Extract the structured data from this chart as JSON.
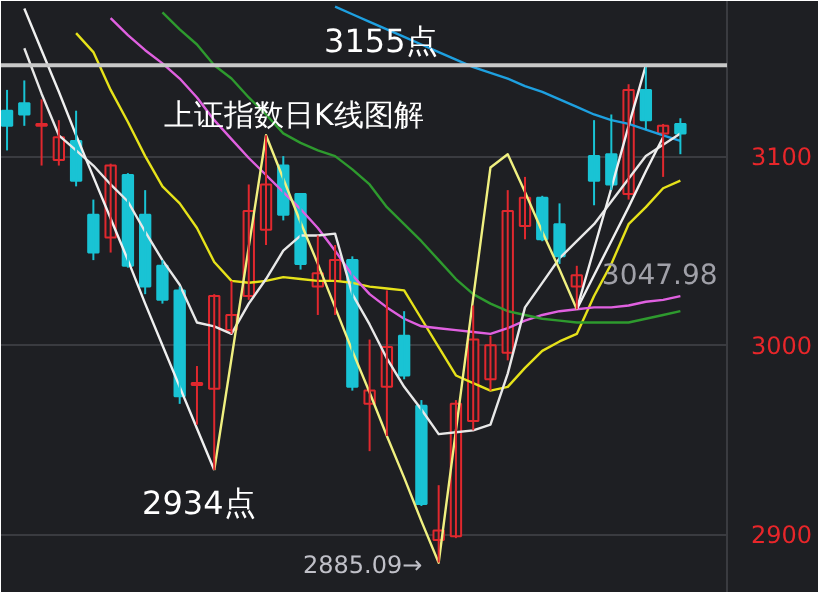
{
  "chart_data": {
    "type": "candlestick",
    "title": "上证指数日K线图解",
    "categories": [
      null,
      null,
      null,
      null,
      null,
      null,
      null,
      null,
      null,
      null,
      null,
      null,
      null,
      null,
      null,
      null,
      null,
      null,
      null,
      null,
      null,
      null,
      null,
      null,
      null,
      null,
      null,
      null,
      null,
      null,
      null,
      null,
      null,
      null,
      null,
      null,
      null,
      null,
      null,
      null
    ],
    "ohlc": [
      [
        3124,
        3135,
        3103,
        3116
      ],
      [
        3128,
        3140,
        3116,
        3122
      ],
      [
        3116,
        3130,
        3095,
        3117
      ],
      [
        3098,
        3119,
        3095,
        3110
      ],
      [
        3108,
        3124,
        3084,
        3087
      ],
      [
        3069,
        3077,
        3045,
        3049
      ],
      [
        3057,
        3096,
        3049,
        3095
      ],
      [
        3090,
        3091,
        3041,
        3042
      ],
      [
        3069,
        3082,
        3027,
        3031
      ],
      [
        3042,
        3045,
        3022,
        3024
      ],
      [
        3029,
        3031,
        2969,
        2973
      ],
      [
        2979,
        2989,
        2958,
        2980
      ],
      [
        2977,
        3027,
        2934,
        3026
      ],
      [
        3008,
        3034,
        3006,
        3016
      ],
      [
        3026,
        3085,
        3024,
        3071
      ],
      [
        3061,
        3111,
        3053,
        3085
      ],
      [
        3095,
        3100,
        3066,
        3069
      ],
      [
        3080,
        3080,
        3040,
        3043
      ],
      [
        3031,
        3058,
        3016,
        3038
      ],
      [
        3034,
        3053,
        3016,
        3045
      ],
      [
        3045,
        3047,
        2976,
        2978
      ],
      [
        2969,
        3003,
        2944,
        2976
      ],
      [
        2978,
        3029,
        2952,
        2999
      ],
      [
        3005,
        3018,
        2982,
        2984
      ],
      [
        2968,
        2971,
        2915,
        2916
      ],
      [
        2897,
        2926,
        2885.09,
        2902
      ],
      [
        2899,
        2971,
        2898,
        2969
      ],
      [
        2960,
        3021,
        2955,
        3003
      ],
      [
        2982,
        3005,
        2976,
        3000
      ],
      [
        2996,
        3082,
        2992,
        3071
      ],
      [
        3063,
        3089,
        3056,
        3078
      ],
      [
        3078,
        3079,
        3055,
        3056
      ],
      [
        3064,
        3075,
        3043,
        3047
      ],
      [
        3031,
        3042,
        3019,
        3037
      ],
      [
        3100,
        3119,
        3074,
        3087
      ],
      [
        3101,
        3122,
        3082,
        3085
      ],
      [
        3080,
        3138,
        3077,
        3135
      ],
      [
        3135,
        3148,
        3114,
        3119
      ],
      [
        3112,
        3117,
        3089,
        3116
      ],
      [
        3117,
        3120,
        3101,
        3112
      ]
    ],
    "colors": [
      "#19c3d4",
      "#19c3d4",
      "#e0282e",
      "#e0282e",
      "#19c3d4",
      "#19c3d4",
      "#e0282e",
      "#19c3d4",
      "#19c3d4",
      "#19c3d4",
      "#19c3d4",
      "#e0282e",
      "#e0282e",
      "#e0282e",
      "#e0282e",
      "#e0282e",
      "#19c3d4",
      "#19c3d4",
      "#e0282e",
      "#e0282e",
      "#19c3d4",
      "#e0282e",
      "#e0282e",
      "#19c3d4",
      "#19c3d4",
      "#e0282e",
      "#e0282e",
      "#e0282e",
      "#e0282e",
      "#e0282e",
      "#e0282e",
      "#19c3d4",
      "#19c3d4",
      "#e0282e",
      "#19c3d4",
      "#19c3d4",
      "#e0282e",
      "#19c3d4",
      "#e0282e",
      "#19c3d4"
    ],
    "series": [
      {
        "type": "line",
        "color": "#e6e21a",
        "values": [
          null,
          null,
          null,
          null,
          3165,
          3155,
          3135,
          3118,
          3100,
          3084,
          3075,
          3062,
          3044,
          3034,
          3033,
          3034,
          3036,
          3035,
          3034,
          3034,
          3033,
          3031,
          3030,
          3029,
          3014,
          2999,
          2984,
          2980,
          2976,
          2978,
          2988,
          2997,
          3002,
          3006,
          3026,
          3043,
          3064,
          3073,
          3083,
          3087
        ]
      },
      {
        "type": "line",
        "color": "#e060e0",
        "values": [
          null,
          null,
          null,
          null,
          null,
          null,
          3173,
          3164,
          3156,
          3149,
          3141,
          3131,
          3119,
          3109,
          3099,
          3090,
          3081,
          3072,
          3062,
          3050,
          3037,
          3027,
          3020,
          3014,
          3010,
          3009,
          3008,
          3007,
          3006,
          3009,
          3013,
          3016,
          3018,
          3019,
          3020,
          3020,
          3021,
          3023,
          3024,
          3026
        ]
      },
      {
        "type": "line",
        "color": "#2e9a2e",
        "values": [
          null,
          null,
          null,
          null,
          null,
          null,
          null,
          null,
          null,
          3176,
          3167,
          3159,
          3148,
          3141,
          3131,
          3122,
          3112,
          3107,
          3103,
          3100,
          3093,
          3085,
          3073,
          3064,
          3055,
          3045,
          3035,
          3027,
          3022,
          3018,
          3016,
          3014,
          3013,
          3012,
          3012,
          3012,
          3012,
          3014,
          3016,
          3018
        ]
      },
      {
        "type": "line",
        "color": "#1ea0e0",
        "values": [
          null,
          null,
          null,
          null,
          null,
          null,
          null,
          null,
          null,
          null,
          null,
          null,
          null,
          null,
          null,
          null,
          null,
          null,
          null,
          3179,
          3175,
          3171,
          3167,
          3163,
          3159,
          3155,
          3151,
          3147,
          3144,
          3141,
          3137,
          3134,
          3130,
          3126,
          3122,
          3119,
          3117,
          3114,
          3111,
          3108
        ]
      },
      {
        "type": "line",
        "color": "#e8e8e8",
        "values": [
          null,
          3157,
          3133,
          3111,
          3103,
          3095,
          3085,
          3076,
          3060,
          3045,
          3032,
          3012,
          3010,
          3006,
          3022,
          3035,
          3050,
          3058,
          3058,
          3059,
          3027,
          3011,
          2993,
          2978,
          2966,
          2953,
          2954,
          2955,
          2958,
          2985,
          3020,
          3033,
          3046,
          3055,
          3064,
          3076,
          3088,
          3100,
          3106,
          3112
        ]
      },
      {
        "type": "line",
        "color": "#f0f0f0",
        "values": [
          null,
          3178,
          3156,
          3134,
          3111,
          3089,
          3067,
          3045,
          3022,
          3000,
          2978,
          2956,
          2934,
          null,
          null,
          null,
          null,
          null,
          null,
          null,
          null,
          null,
          null,
          null,
          null,
          null,
          null,
          null,
          null,
          null,
          null,
          null,
          null,
          null,
          null,
          null,
          null,
          null,
          null,
          null
        ]
      },
      {
        "type": "line",
        "color": "#f0f080",
        "values": [
          null,
          null,
          null,
          null,
          null,
          null,
          null,
          null,
          null,
          null,
          null,
          null,
          2934,
          2993,
          3052,
          3111,
          3088,
          3065,
          3043,
          3020,
          2997,
          2975,
          2952,
          2930,
          2907,
          2885,
          2955,
          3025,
          3094,
          3101,
          3081,
          3060,
          3040,
          3019,
          null,
          null,
          null,
          null,
          null,
          null
        ]
      },
      {
        "type": "line",
        "color": "#f0f0f0",
        "values": [
          null,
          null,
          null,
          null,
          null,
          null,
          null,
          null,
          null,
          null,
          null,
          null,
          null,
          null,
          null,
          null,
          null,
          null,
          null,
          null,
          null,
          null,
          null,
          null,
          null,
          null,
          null,
          null,
          null,
          null,
          null,
          null,
          null,
          3019,
          3051,
          3083,
          3116,
          3148,
          null,
          null
        ]
      },
      {
        "type": "line",
        "color": "#f0f0f0",
        "values": [
          null,
          null,
          null,
          null,
          null,
          null,
          null,
          null,
          null,
          null,
          null,
          null,
          null,
          null,
          null,
          null,
          null,
          null,
          null,
          null,
          null,
          null,
          null,
          null,
          null,
          null,
          null,
          null,
          null,
          null,
          null,
          null,
          null,
          3019,
          3037,
          3055,
          3073,
          3092,
          3110,
          null
        ]
      }
    ],
    "ref_lines": [
      {
        "axis": "y",
        "value": 3148,
        "color": "#c8c8c8"
      }
    ],
    "annotations": [
      "3155点",
      "2934点",
      "2885.09→",
      "3047.98"
    ],
    "ylim": [
      2869,
      3182
    ],
    "yticks": [
      2900,
      3000,
      3100
    ],
    "grid": "y",
    "tick_labels": "y"
  }
}
